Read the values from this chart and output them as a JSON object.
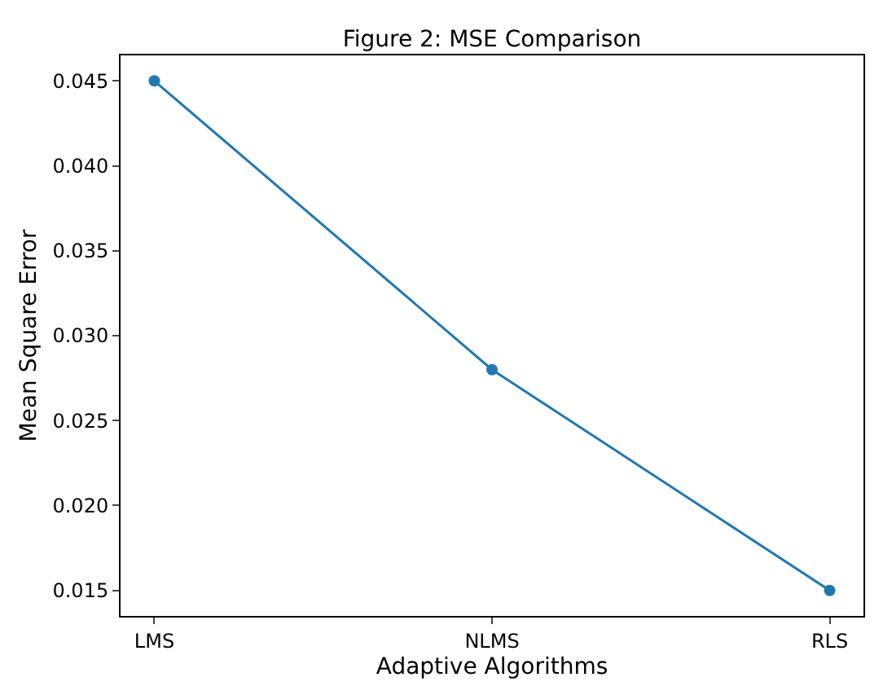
{
  "chart_data": {
    "type": "line",
    "title": "Figure 2: MSE Comparison",
    "xlabel": "Adaptive Algorithms",
    "ylabel": "Mean Square Error",
    "categories": [
      "LMS",
      "NLMS",
      "RLS"
    ],
    "series": [
      {
        "color": "#1f77b4",
        "values": [
          0.045,
          0.028,
          0.015
        ]
      }
    ],
    "ylim": [
      0.0135,
      0.0465
    ],
    "yticks": [
      {
        "value": 0.015,
        "label": "0.015"
      },
      {
        "value": 0.02,
        "label": "0.020"
      },
      {
        "value": 0.025,
        "label": "0.025"
      },
      {
        "value": 0.03,
        "label": "0.030"
      },
      {
        "value": 0.035,
        "label": "0.035"
      },
      {
        "value": 0.04,
        "label": "0.040"
      },
      {
        "value": 0.045,
        "label": "0.045"
      }
    ],
    "marker": "circle",
    "grid": false
  }
}
